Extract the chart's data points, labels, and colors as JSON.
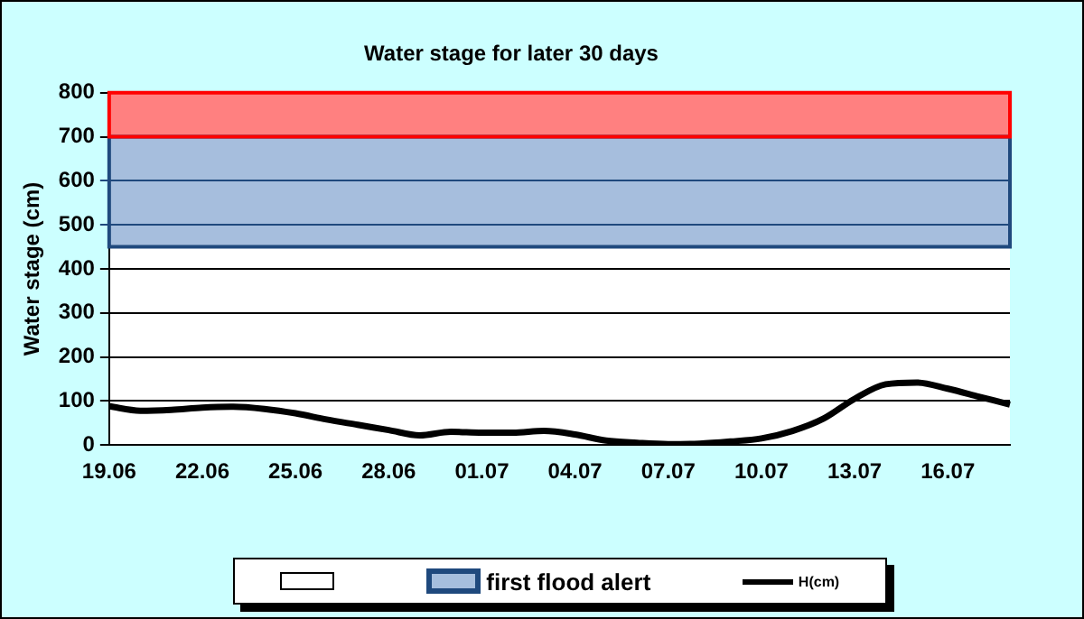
{
  "chart_data": {
    "type": "line",
    "title": "Water stage for later 30 days",
    "ylabel": "Water stage (cm)",
    "categories": [
      "19.06",
      null,
      null,
      "22.06",
      null,
      null,
      "25.06",
      null,
      null,
      "28.06",
      null,
      null,
      "01.07",
      null,
      null,
      "04.07",
      null,
      null,
      "07.07",
      null,
      null,
      "10.07",
      null,
      null,
      "13.07",
      null,
      null,
      "16.07",
      null,
      null
    ],
    "series": [
      {
        "name": "H(cm)",
        "color": "#000000",
        "values": [
          88,
          78,
          80,
          85,
          87,
          82,
          72,
          58,
          46,
          34,
          22,
          30,
          28,
          28,
          32,
          24,
          10,
          5,
          2,
          3,
          8,
          15,
          32,
          60,
          105,
          138,
          142,
          128,
          110,
          92
        ]
      }
    ],
    "bands": [
      {
        "axis": "y",
        "from": 0,
        "to": 450,
        "color": "#ffffff"
      },
      {
        "axis": "y",
        "from": 450,
        "to": 700,
        "label": "first flood alert",
        "color": "#a6bedd"
      },
      {
        "axis": "y",
        "from": 700,
        "to": 800,
        "color": "#ff8080"
      }
    ],
    "ylim": [
      0,
      800
    ],
    "yticks": [
      0,
      100,
      200,
      300,
      400,
      500,
      600,
      700,
      800
    ],
    "grid": "y",
    "legend": "bottom",
    "marker": "none",
    "line_style": "solid"
  }
}
